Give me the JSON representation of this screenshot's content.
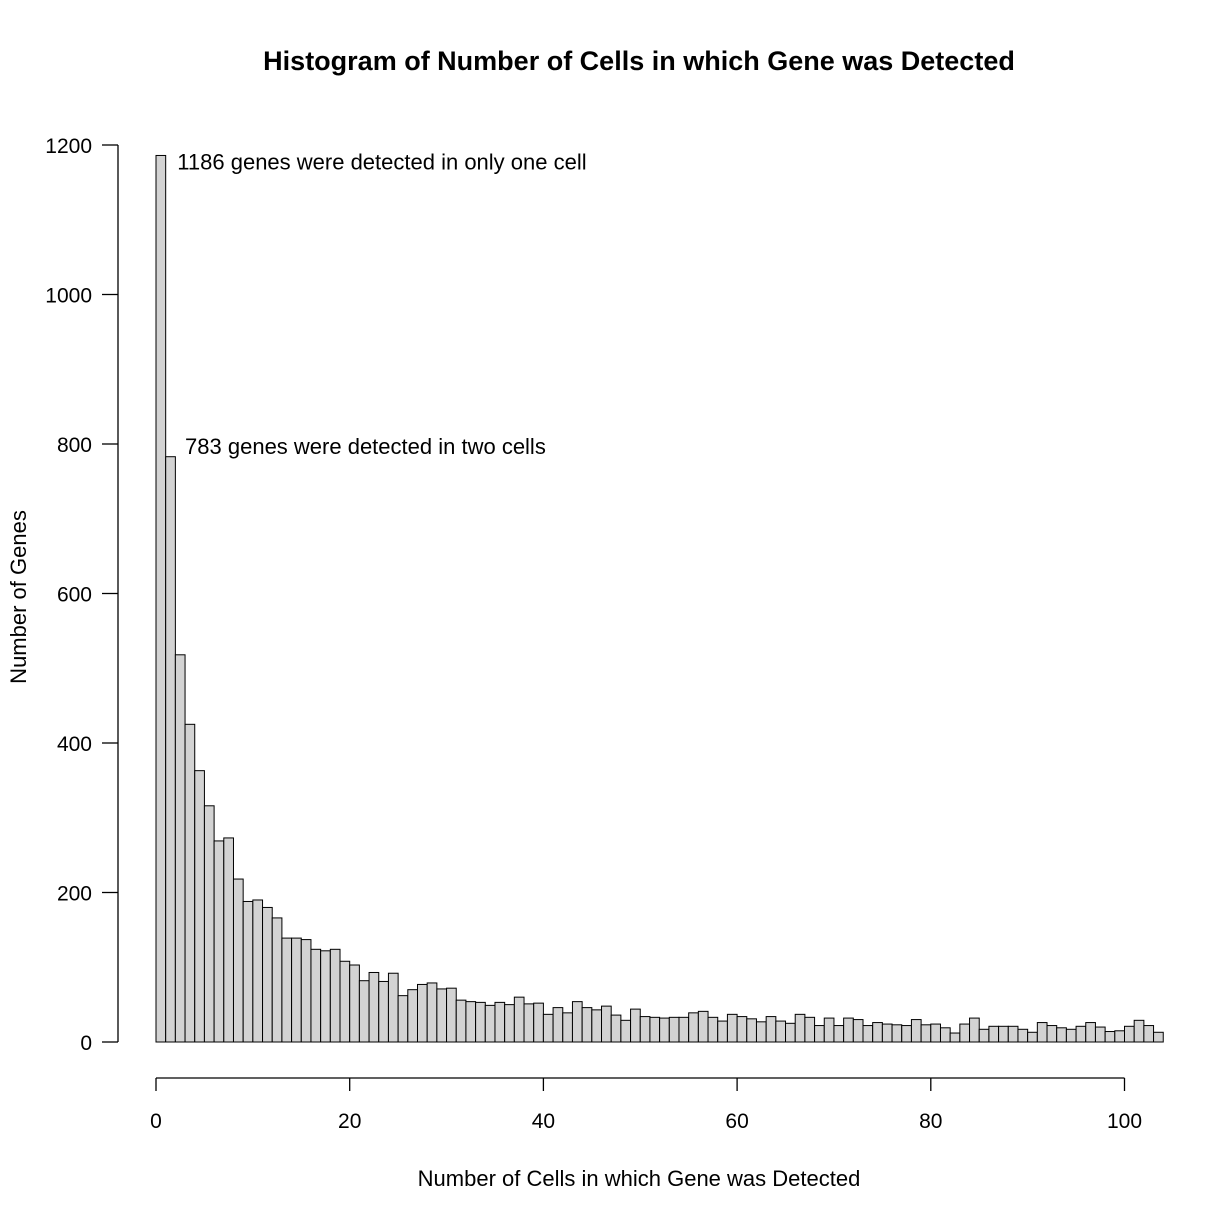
{
  "chart_data": {
    "type": "bar",
    "title": "Histogram of Number of Cells in which Gene was Detected",
    "xlabel": "Number of Cells in which Gene was Detected",
    "ylabel": "Number of Genes",
    "bin_width": 1,
    "x_start": 0,
    "xlim": [
      0,
      104
    ],
    "ylim": [
      0,
      1200
    ],
    "x_ticks": [
      0,
      20,
      40,
      60,
      80,
      100
    ],
    "y_ticks": [
      0,
      200,
      400,
      600,
      800,
      1000,
      1200
    ],
    "bar_color": "#d3d3d3",
    "grid": false,
    "values": [
      1186,
      783,
      518,
      425,
      363,
      316,
      269,
      273,
      218,
      188,
      190,
      180,
      166,
      139,
      139,
      137,
      124,
      122,
      124,
      108,
      103,
      82,
      93,
      81,
      92,
      62,
      70,
      77,
      79,
      71,
      72,
      56,
      54,
      53,
      49,
      53,
      50,
      60,
      51,
      52,
      37,
      46,
      39,
      54,
      46,
      43,
      48,
      36,
      29,
      44,
      34,
      33,
      32,
      33,
      33,
      39,
      41,
      33,
      28,
      37,
      34,
      31,
      27,
      34,
      28,
      25,
      37,
      33,
      22,
      32,
      22,
      32,
      30,
      22,
      26,
      24,
      23,
      22,
      30,
      23,
      24,
      19,
      12,
      24,
      32,
      17,
      21,
      21,
      21,
      17,
      13,
      26,
      22,
      19,
      17,
      21,
      26,
      20,
      14,
      15,
      21,
      29,
      22,
      13
    ],
    "annotations": [
      {
        "text": "1186 genes were detected in only one cell",
        "x": 2.2,
        "y": 1178
      },
      {
        "text": "783 genes were detected in two cells",
        "x": 3.0,
        "y": 797
      }
    ]
  }
}
